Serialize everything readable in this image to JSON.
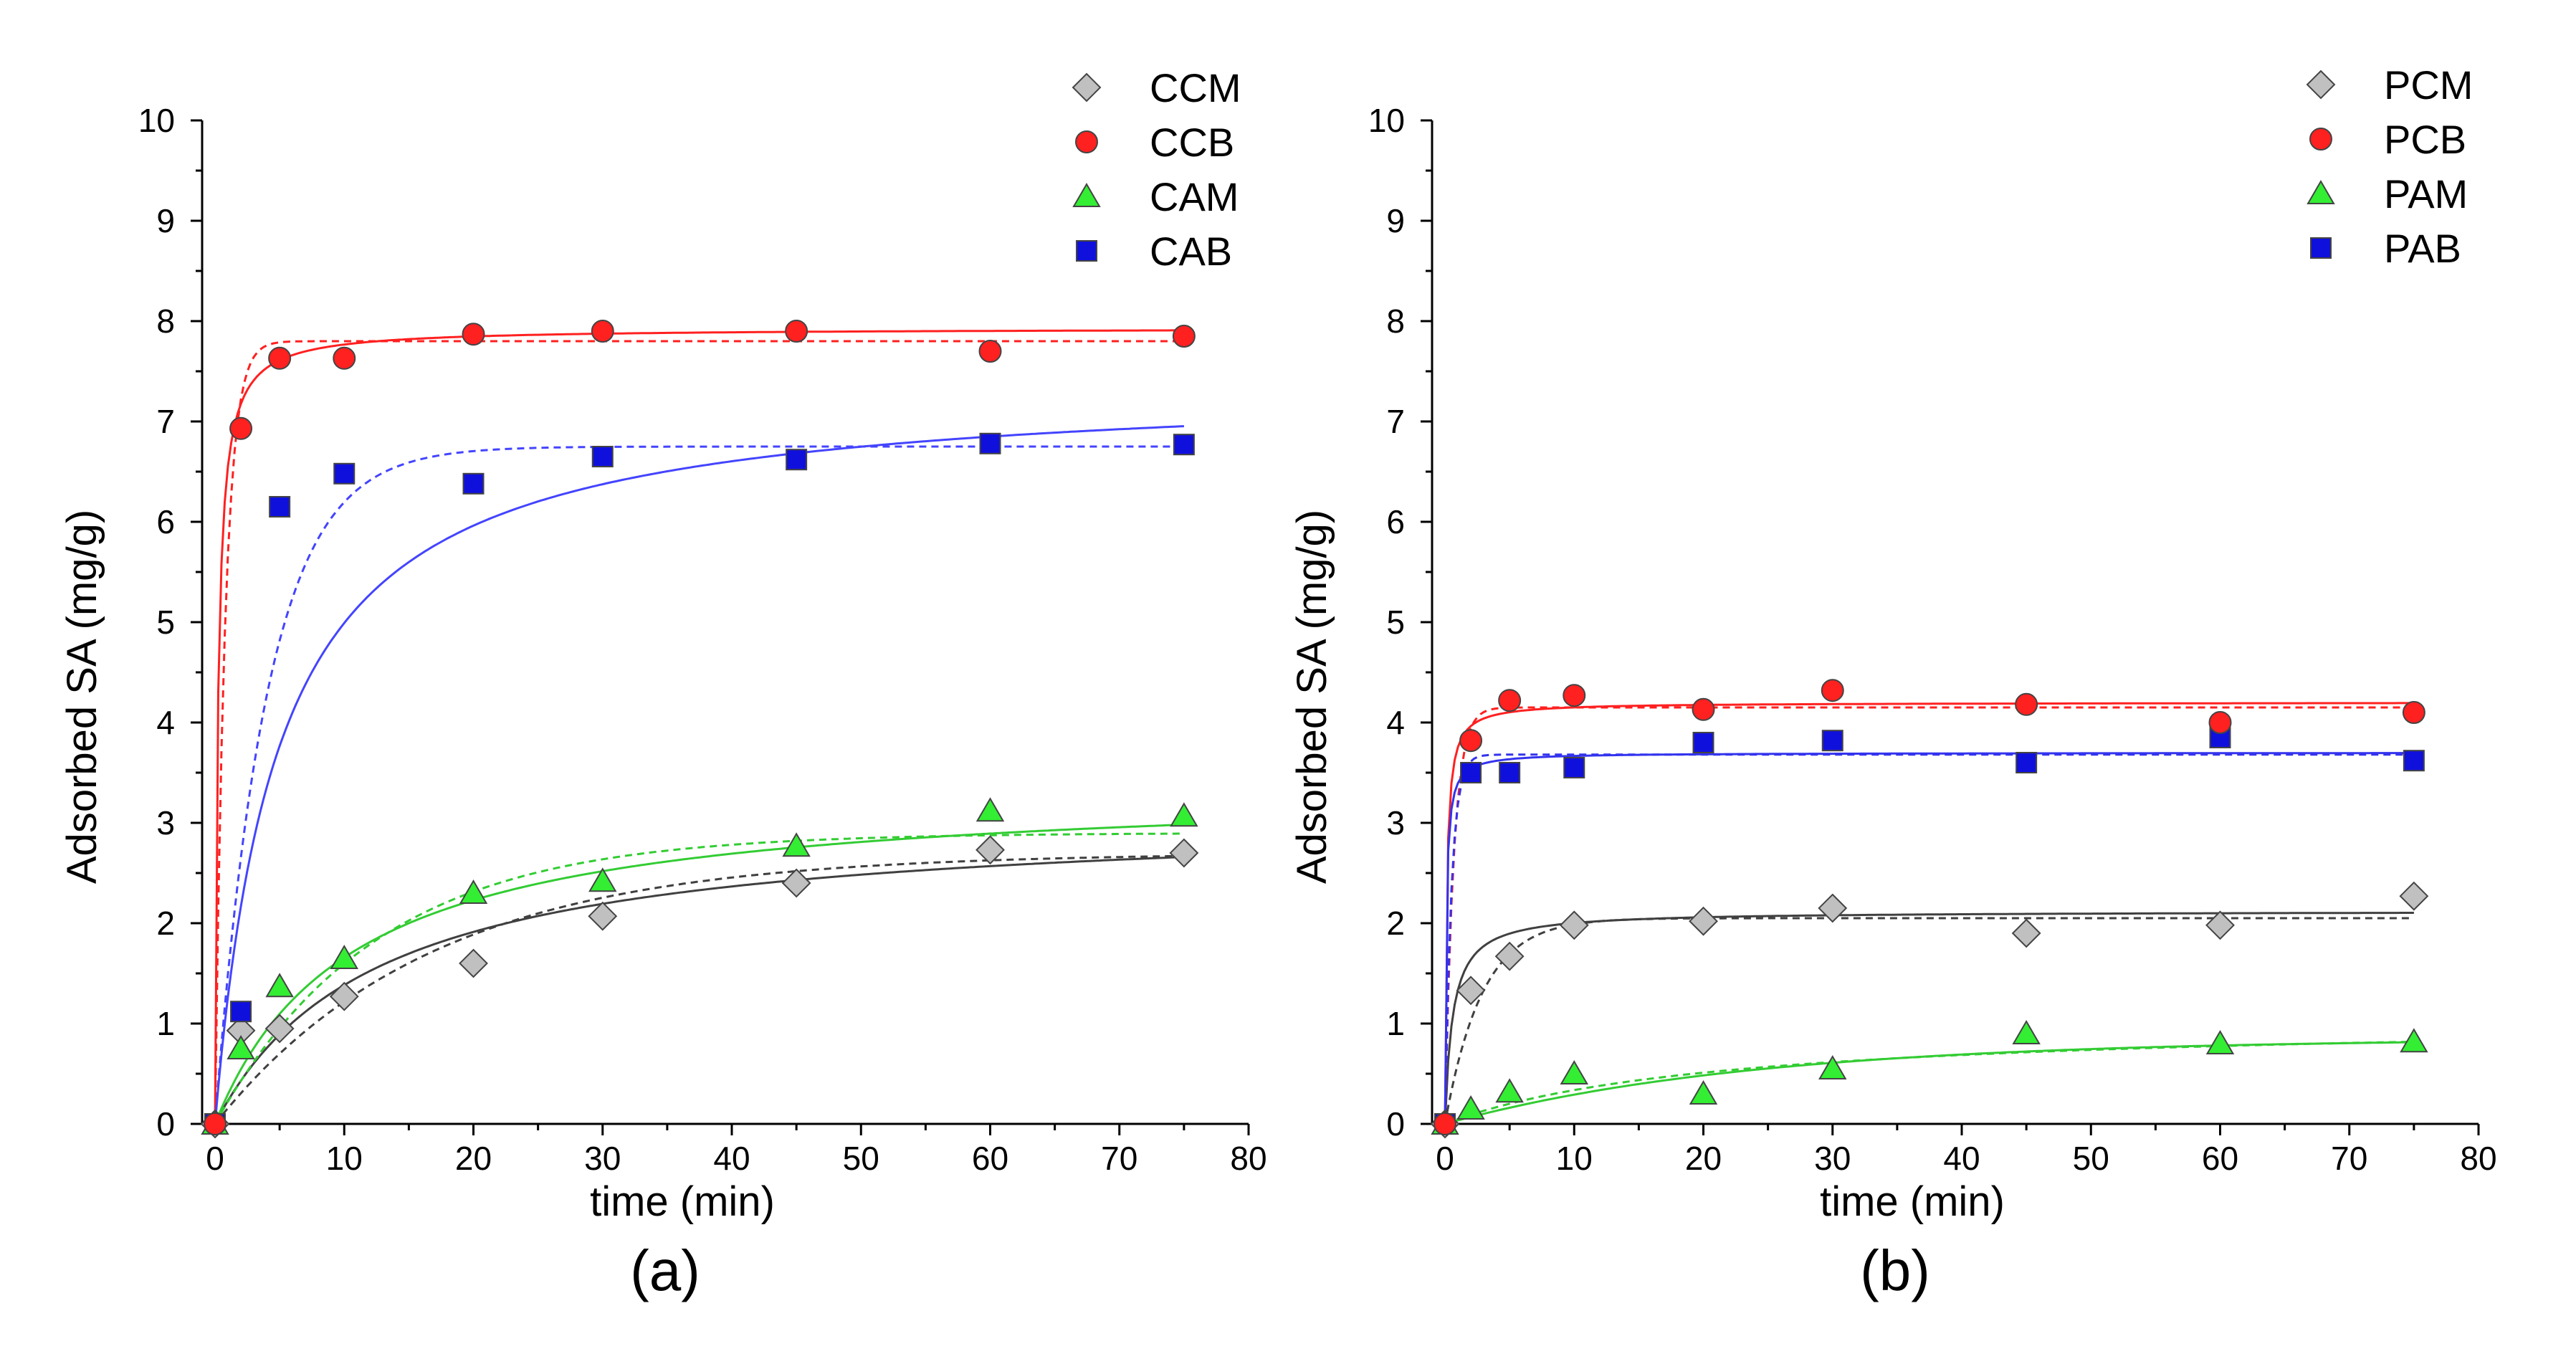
{
  "chart_data": [
    {
      "type": "scatter",
      "panel_label": "(a)",
      "xlabel": "time (min)",
      "ylabel": "Adsorbed SA (mg/g)",
      "xlim": [
        -1,
        80
      ],
      "ylim": [
        0,
        10
      ],
      "xticks": [
        0,
        10,
        20,
        30,
        40,
        50,
        60,
        70,
        80
      ],
      "yticks": [
        0,
        1,
        2,
        3,
        4,
        5,
        6,
        7,
        8,
        9,
        10
      ],
      "legend_position": "top-right",
      "x": [
        0,
        2,
        5,
        10,
        20,
        30,
        45,
        60,
        75
      ],
      "series": [
        {
          "name": "CCM",
          "marker": "diamond",
          "color": "#c0c0c0",
          "fit_color": "#404040",
          "values": [
            0.0,
            0.93,
            0.95,
            1.27,
            1.6,
            2.07,
            2.4,
            2.73,
            2.7
          ],
          "fit_solid": {
            "model": "pso",
            "qe": 3.1,
            "k": 0.026
          },
          "fit_dashed": {
            "model": "pfo",
            "qe": 2.7,
            "k": 0.06
          }
        },
        {
          "name": "CCB",
          "marker": "circle",
          "color": "#ff2020",
          "fit_color": "#ff2020",
          "values": [
            0.0,
            6.93,
            7.63,
            7.63,
            7.87,
            7.9,
            7.9,
            7.7,
            7.85
          ],
          "fit_solid": {
            "model": "pso",
            "qe": 7.93,
            "k": 0.6
          },
          "fit_dashed": {
            "model": "pfo",
            "qe": 7.8,
            "k": 1.3
          }
        },
        {
          "name": "CAM",
          "marker": "triangle",
          "color": "#33ee33",
          "fit_color": "#33cc33",
          "values": [
            0.0,
            0.75,
            1.37,
            1.65,
            2.3,
            2.42,
            2.77,
            3.12,
            3.07
          ],
          "fit_solid": {
            "model": "pso",
            "qe": 3.4,
            "k": 0.028
          },
          "fit_dashed": {
            "model": "pfo",
            "qe": 2.9,
            "k": 0.08
          }
        },
        {
          "name": "CAB",
          "marker": "square",
          "color": "#1010dd",
          "fit_color": "#4444ff",
          "values": [
            0.0,
            1.12,
            6.15,
            6.48,
            6.38,
            6.65,
            6.62,
            6.78,
            6.77
          ],
          "fit_solid": {
            "model": "pso",
            "qe": 7.4,
            "k": 0.028
          },
          "fit_dashed": {
            "model": "pfo",
            "qe": 6.75,
            "k": 0.25
          }
        }
      ]
    },
    {
      "type": "scatter",
      "panel_label": "(b)",
      "xlabel": "time (min)",
      "ylabel": "Adsorbed SA (mg/g)",
      "xlim": [
        -1,
        80
      ],
      "ylim": [
        0,
        10
      ],
      "xticks": [
        0,
        10,
        20,
        30,
        40,
        50,
        60,
        70,
        80
      ],
      "yticks": [
        0,
        1,
        2,
        3,
        4,
        5,
        6,
        7,
        8,
        9,
        10
      ],
      "legend_position": "top-right",
      "x": [
        0,
        2,
        5,
        10,
        20,
        30,
        45,
        60,
        75
      ],
      "series": [
        {
          "name": "PCM",
          "marker": "diamond",
          "color": "#c0c0c0",
          "fit_color": "#404040",
          "values": [
            0.0,
            1.33,
            1.67,
            1.98,
            2.02,
            2.15,
            1.9,
            1.98,
            2.27
          ],
          "fit_solid": {
            "model": "pso",
            "qe": 2.12,
            "k": 0.8
          },
          "fit_dashed": {
            "model": "pfo",
            "qe": 2.05,
            "k": 0.35
          }
        },
        {
          "name": "PCB",
          "marker": "circle",
          "color": "#ff2020",
          "fit_color": "#ff2020",
          "values": [
            0.0,
            3.82,
            4.22,
            4.27,
            4.13,
            4.32,
            4.18,
            4.0,
            4.1
          ],
          "fit_solid": {
            "model": "pso",
            "qe": 4.2,
            "k": 2.0
          },
          "fit_dashed": {
            "model": "pfo",
            "qe": 4.15,
            "k": 1.5
          }
        },
        {
          "name": "PAM",
          "marker": "triangle",
          "color": "#33ee33",
          "fit_color": "#33cc33",
          "values": [
            0.0,
            0.15,
            0.32,
            0.5,
            0.3,
            0.55,
            0.9,
            0.8,
            0.82
          ],
          "fit_solid": {
            "model": "pfo",
            "qe": 0.85,
            "k": 0.042
          },
          "fit_dashed": {
            "model": "pso",
            "qe": 1.05,
            "k": 0.045
          }
        },
        {
          "name": "PAB",
          "marker": "square",
          "color": "#1010dd",
          "fit_color": "#3333ee",
          "values": [
            0.0,
            3.5,
            3.5,
            3.55,
            3.8,
            3.82,
            3.6,
            3.85,
            3.62
          ],
          "fit_solid": {
            "model": "pso",
            "qe": 3.7,
            "k": 3.0
          },
          "fit_dashed": {
            "model": "pfo",
            "qe": 3.68,
            "k": 2.0
          }
        }
      ]
    }
  ]
}
